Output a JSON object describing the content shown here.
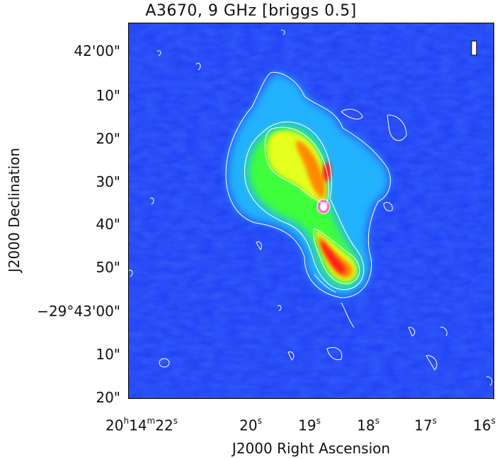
{
  "title": "A3670, 9 GHz [briggs 0.5]",
  "axes": {
    "xlabel": "J2000 Right Ascension",
    "ylabel": "J2000 Declination",
    "xticks": [
      {
        "text": "20",
        "h": "h",
        "mid": "14",
        "m": "m",
        "end": "22",
        "s": "s"
      },
      {
        "text": "20",
        "s": "s"
      },
      {
        "text": "19",
        "s": "s"
      },
      {
        "text": "18",
        "s": "s"
      },
      {
        "text": "17",
        "s": "s"
      },
      {
        "text": "16",
        "s": "s"
      }
    ],
    "yticks": [
      "42'00\"",
      "10\"",
      "20\"",
      "30\"",
      "40\"",
      "50\"",
      "−29°43'00\"",
      "10\"",
      "20\""
    ]
  },
  "colors": {
    "background": "#1e3ef5",
    "cyan": "#22c8ff",
    "green": "#3dff3a",
    "yellow": "#e6ff1a",
    "orange": "#ff8a00",
    "red": "#ff1a1a",
    "core": "#ff6bd1",
    "contour": "#ffffff"
  }
}
